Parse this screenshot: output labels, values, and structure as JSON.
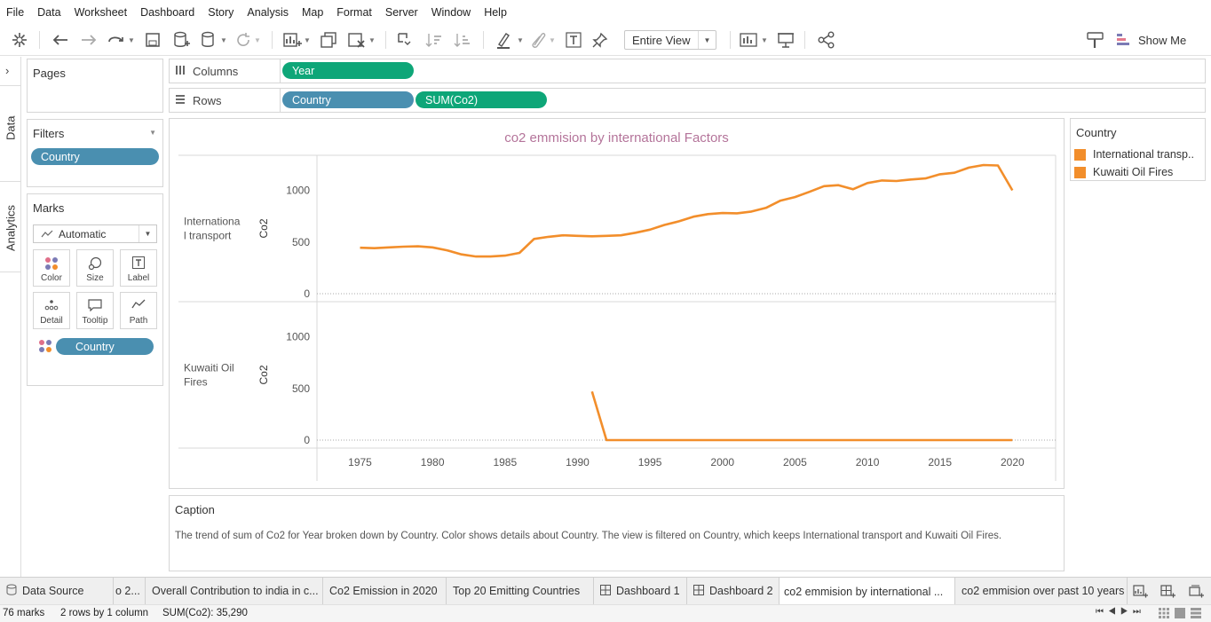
{
  "menu": [
    "File",
    "Data",
    "Worksheet",
    "Dashboard",
    "Story",
    "Analysis",
    "Map",
    "Format",
    "Server",
    "Window",
    "Help"
  ],
  "toolbar": {
    "fit_label": "Entire View",
    "show_me_label": "Show Me"
  },
  "side_tabs": {
    "data": "Data",
    "analytics": "Analytics"
  },
  "pages": {
    "title": "Pages"
  },
  "filters": {
    "title": "Filters",
    "pill": "Country"
  },
  "marks": {
    "title": "Marks",
    "type": "Automatic",
    "buttons": [
      "Color",
      "Size",
      "Label",
      "Detail",
      "Tooltip",
      "Path"
    ],
    "pill": "Country"
  },
  "shelves": {
    "columns_label": "Columns",
    "columns_pills": [
      "Year"
    ],
    "rows_label": "Rows",
    "rows_pills": [
      "Country",
      "SUM(Co2)"
    ]
  },
  "legend": {
    "title": "Country",
    "items": [
      "International transp..",
      "Kuwaiti Oil Fires"
    ],
    "color": "#f28e2b"
  },
  "caption": {
    "title": "Caption",
    "text": "The trend of sum of Co2 for Year broken down by Country.  Color shows details about Country. The view is filtered on Country, which keeps International transport and Kuwaiti Oil Fires."
  },
  "sheet_tabs": [
    "Data Source",
    "o 2...",
    "Overall Contribution to india in c...",
    "Co2 Emission in 2020",
    "Top 20 Emitting Countries",
    "Dashboard 1",
    "Dashboard 2",
    "co2 emmision by international ...",
    "co2 emmision over past 10 years"
  ],
  "status": {
    "marks": "76 marks",
    "dims": "2 rows by 1 column",
    "sum": "SUM(Co2): 35,290"
  },
  "chart_data": {
    "type": "line",
    "title": "co2 emmision by international Factors",
    "xlabel": "",
    "ylabel": "Co2",
    "x_ticks": [
      1975,
      1980,
      1985,
      1990,
      1995,
      2000,
      2005,
      2010,
      2015,
      2020
    ],
    "y_ticks": [
      0,
      500,
      1000
    ],
    "xlim": [
      1972,
      2022
    ],
    "ylim": [
      0,
      1300
    ],
    "color": "#f28e2b",
    "panes": [
      {
        "name": "International transport",
        "label_lines": [
          "Internationa",
          "l transport"
        ],
        "x": [
          1975,
          1976,
          1977,
          1978,
          1979,
          1980,
          1981,
          1982,
          1983,
          1984,
          1985,
          1986,
          1987,
          1988,
          1989,
          1990,
          1991,
          1992,
          1993,
          1994,
          1995,
          1996,
          1997,
          1998,
          1999,
          2000,
          2001,
          2002,
          2003,
          2004,
          2005,
          2006,
          2007,
          2008,
          2009,
          2010,
          2011,
          2012,
          2013,
          2014,
          2015,
          2016,
          2017,
          2018,
          2019,
          2020
        ],
        "y": [
          445,
          440,
          448,
          455,
          458,
          448,
          420,
          380,
          360,
          360,
          368,
          395,
          530,
          550,
          565,
          560,
          555,
          560,
          565,
          590,
          620,
          665,
          700,
          745,
          770,
          780,
          778,
          795,
          830,
          900,
          935,
          985,
          1040,
          1050,
          1010,
          1070,
          1095,
          1090,
          1105,
          1115,
          1155,
          1170,
          1220,
          1245,
          1240,
          1000
        ]
      },
      {
        "name": "Kuwaiti Oil Fires",
        "label_lines": [
          "Kuwaiti Oil",
          "Fires"
        ],
        "x": [
          1991,
          1992,
          1993,
          1995,
          2000,
          2005,
          2010,
          2015,
          2020
        ],
        "y": [
          470,
          0,
          0,
          0,
          0,
          0,
          0,
          0,
          0
        ]
      }
    ]
  }
}
